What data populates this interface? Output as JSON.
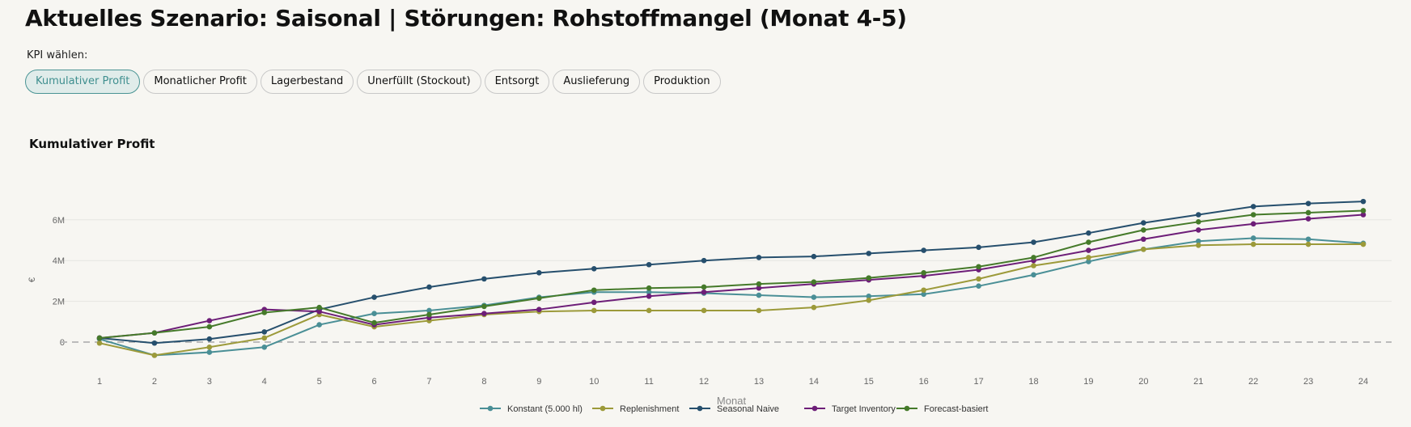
{
  "header": {
    "title": "Aktuelles Szenario: Saisonal | Störungen: Rohstoffmangel (Monat 4-5)"
  },
  "kpi": {
    "label": "KPI wählen:",
    "options": [
      "Kumulativer Profit",
      "Monatlicher Profit",
      "Lagerbestand",
      "Unerfüllt (Stockout)",
      "Entsorgt",
      "Auslieferung",
      "Produktion"
    ],
    "selected": "Kumulativer Profit"
  },
  "chart_data": {
    "type": "line",
    "title": "Kumulativer Profit",
    "xlabel": "Monat",
    "ylabel": "€",
    "x": [
      1,
      2,
      3,
      4,
      5,
      6,
      7,
      8,
      9,
      10,
      11,
      12,
      13,
      14,
      15,
      16,
      17,
      18,
      19,
      20,
      21,
      22,
      23,
      24
    ],
    "ylim": [
      -1.5,
      8.5
    ],
    "yticks": [
      0,
      2,
      4,
      6
    ],
    "ytick_labels": [
      "0",
      "2M",
      "4M",
      "6M"
    ],
    "grid": true,
    "zero_line": "dashed",
    "legend_position": "bottom",
    "series": [
      {
        "name": "Konstant (5.000 hl)",
        "color": "#4a8f96",
        "values": [
          0.15,
          -0.65,
          -0.5,
          -0.25,
          0.85,
          1.4,
          1.55,
          1.8,
          2.2,
          2.45,
          2.45,
          2.4,
          2.3,
          2.2,
          2.25,
          2.35,
          2.75,
          3.3,
          3.95,
          4.55,
          4.95,
          5.1,
          5.05,
          4.85
        ]
      },
      {
        "name": "Replenishment",
        "color": "#9c9a3a",
        "values": [
          -0.05,
          -0.65,
          -0.25,
          0.2,
          1.35,
          0.75,
          1.05,
          1.35,
          1.5,
          1.55,
          1.55,
          1.55,
          1.55,
          1.7,
          2.05,
          2.55,
          3.1,
          3.75,
          4.15,
          4.55,
          4.75,
          4.8,
          4.8,
          4.8
        ]
      },
      {
        "name": "Seasonal Naive",
        "color": "#264f6d",
        "values": [
          0.2,
          -0.05,
          0.15,
          0.5,
          1.6,
          2.2,
          2.7,
          3.1,
          3.4,
          3.6,
          3.8,
          4.0,
          4.15,
          4.2,
          4.35,
          4.5,
          4.65,
          4.9,
          5.35,
          5.85,
          6.25,
          6.65,
          6.8,
          6.9
        ]
      },
      {
        "name": "Target Inventory",
        "color": "#6d1e78",
        "values": [
          0.2,
          0.45,
          1.05,
          1.6,
          1.5,
          0.85,
          1.2,
          1.4,
          1.6,
          1.95,
          2.25,
          2.45,
          2.65,
          2.85,
          3.05,
          3.25,
          3.55,
          4.0,
          4.5,
          5.05,
          5.5,
          5.8,
          6.05,
          6.25
        ]
      },
      {
        "name": "Forecast-basiert",
        "color": "#457a2a",
        "values": [
          0.2,
          0.45,
          0.75,
          1.45,
          1.7,
          0.95,
          1.35,
          1.75,
          2.15,
          2.55,
          2.65,
          2.7,
          2.85,
          2.95,
          3.15,
          3.4,
          3.7,
          4.15,
          4.9,
          5.5,
          5.9,
          6.25,
          6.35,
          6.45
        ]
      }
    ]
  }
}
